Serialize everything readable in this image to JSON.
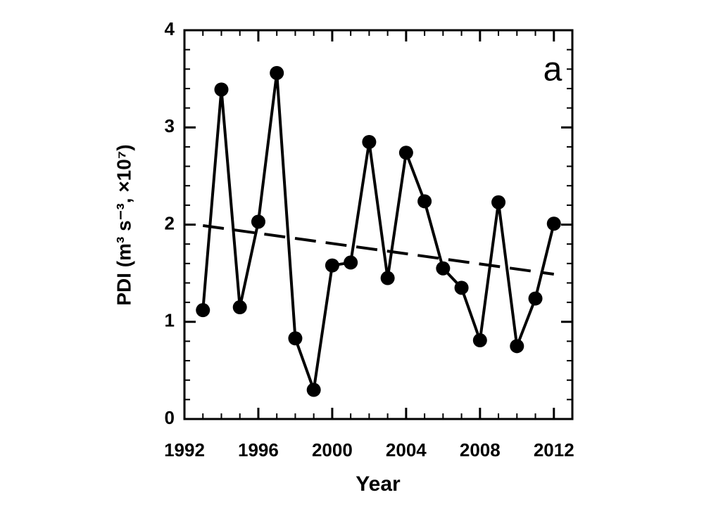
{
  "chart_data": {
    "type": "line",
    "x_label": "Year",
    "y_label": "PDI (m³ s⁻³, ×10⁷)",
    "panel_label": "a",
    "x": [
      1993,
      1994,
      1995,
      1996,
      1997,
      1998,
      1999,
      2000,
      2001,
      2002,
      2003,
      2004,
      2005,
      2006,
      2007,
      2008,
      2009,
      2010,
      2011,
      2012
    ],
    "series": [
      {
        "color": "#000000",
        "values": [
          1.12,
          3.39,
          1.15,
          2.03,
          3.56,
          0.83,
          0.3,
          1.58,
          1.61,
          2.85,
          1.45,
          2.74,
          2.24,
          1.55,
          1.35,
          0.81,
          2.23,
          0.75,
          1.24,
          2.01
        ]
      }
    ],
    "trend": {
      "x": [
        1993,
        2012
      ],
      "values": [
        1.99,
        1.49
      ],
      "color": "#000000"
    },
    "xlim": [
      1992,
      2013
    ],
    "xticks": [
      1992,
      1996,
      2000,
      2004,
      2008,
      2012
    ],
    "ylim": [
      0,
      4
    ],
    "yticks": [
      0,
      1,
      2,
      3,
      4
    ],
    "grid": false
  }
}
